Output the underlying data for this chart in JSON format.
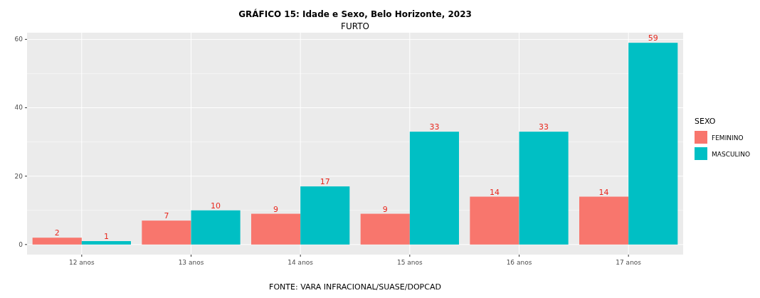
{
  "chart_data": {
    "type": "bar",
    "title": "GRÁFICO 15: Idade e Sexo, Belo Horizonte, 2023",
    "subtitle": "FURTO",
    "legend_title": "SEXO",
    "categories": [
      "12 anos",
      "13 anos",
      "14 anos",
      "15 anos",
      "16 anos",
      "17 anos"
    ],
    "series": [
      {
        "name": "FEMININO",
        "color": "#f8766d",
        "values": [
          2,
          7,
          9,
          9,
          14,
          14
        ]
      },
      {
        "name": "MASCULINO",
        "color": "#00bfc4",
        "values": [
          1,
          10,
          17,
          33,
          33,
          59
        ]
      }
    ],
    "ylim": [
      -2.95,
      61.95
    ],
    "yticks": [
      0,
      20,
      40,
      60
    ],
    "grid": true,
    "legend": "right",
    "data_labels": true,
    "annotations": [
      "FONTE: VARA INFRACIONAL/SUASE/DOPCAD"
    ]
  }
}
